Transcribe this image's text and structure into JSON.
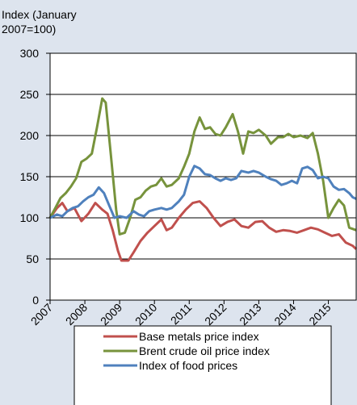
{
  "chart_data": {
    "type": "line",
    "y_label": "Index (January 2007=100)",
    "xlim": [
      2007,
      2015.8
    ],
    "xticks": [
      2007,
      2008,
      2009,
      2010,
      2011,
      2012,
      2013,
      2014,
      2015
    ],
    "ylim": [
      0,
      300
    ],
    "yticks": [
      0,
      50,
      100,
      150,
      200,
      250,
      300
    ],
    "grid": true,
    "legend": "bottom",
    "series": [
      {
        "name": "Base metals price index",
        "color": "#c0504d",
        "x": [
          2007.0,
          2007.2,
          2007.35,
          2007.5,
          2007.7,
          2007.9,
          2008.1,
          2008.3,
          2008.5,
          2008.65,
          2008.8,
          2008.95,
          2009.05,
          2009.25,
          2009.4,
          2009.6,
          2009.8,
          2010.0,
          2010.2,
          2010.35,
          2010.5,
          2010.7,
          2010.9,
          2011.1,
          2011.3,
          2011.5,
          2011.7,
          2011.9,
          2012.1,
          2012.3,
          2012.5,
          2012.7,
          2012.9,
          2013.1,
          2013.3,
          2013.5,
          2013.7,
          2013.9,
          2014.1,
          2014.3,
          2014.5,
          2014.7,
          2014.9,
          2015.1,
          2015.3,
          2015.5,
          2015.7,
          2015.8
        ],
        "values": [
          100,
          112,
          118,
          108,
          112,
          96,
          105,
          118,
          110,
          105,
          85,
          60,
          48,
          48,
          58,
          72,
          82,
          90,
          98,
          85,
          88,
          100,
          110,
          118,
          120,
          112,
          100,
          90,
          95,
          98,
          90,
          88,
          95,
          96,
          88,
          83,
          85,
          84,
          82,
          85,
          88,
          86,
          82,
          78,
          80,
          70,
          66,
          62
        ]
      },
      {
        "name": "Brent crude oil price index",
        "color": "#77933c",
        "x": [
          2007.0,
          2007.15,
          2007.3,
          2007.45,
          2007.6,
          2007.75,
          2007.9,
          2008.05,
          2008.2,
          2008.35,
          2008.5,
          2008.6,
          2008.75,
          2008.9,
          2009.0,
          2009.15,
          2009.3,
          2009.45,
          2009.6,
          2009.75,
          2009.9,
          2010.05,
          2010.2,
          2010.35,
          2010.5,
          2010.7,
          2010.85,
          2011.0,
          2011.15,
          2011.3,
          2011.45,
          2011.6,
          2011.75,
          2011.9,
          2012.05,
          2012.25,
          2012.4,
          2012.55,
          2012.7,
          2012.85,
          2013.0,
          2013.2,
          2013.35,
          2013.55,
          2013.7,
          2013.85,
          2014.0,
          2014.2,
          2014.4,
          2014.55,
          2014.7,
          2014.85,
          2015.0,
          2015.15,
          2015.3,
          2015.45,
          2015.6,
          2015.8
        ],
        "values": [
          100,
          112,
          124,
          130,
          138,
          148,
          168,
          172,
          178,
          210,
          245,
          240,
          175,
          110,
          80,
          82,
          100,
          122,
          125,
          133,
          138,
          140,
          148,
          138,
          140,
          148,
          162,
          178,
          205,
          222,
          208,
          210,
          202,
          200,
          210,
          226,
          205,
          178,
          205,
          203,
          207,
          200,
          190,
          198,
          198,
          202,
          198,
          200,
          197,
          203,
          178,
          145,
          100,
          112,
          122,
          115,
          88,
          85
        ]
      },
      {
        "name": "Index of food prices",
        "color": "#4f81bd",
        "x": [
          2007.0,
          2007.2,
          2007.35,
          2007.5,
          2007.65,
          2007.8,
          2007.95,
          2008.1,
          2008.25,
          2008.4,
          2008.55,
          2008.7,
          2008.85,
          2009.0,
          2009.2,
          2009.4,
          2009.55,
          2009.7,
          2009.85,
          2010.0,
          2010.2,
          2010.35,
          2010.5,
          2010.7,
          2010.85,
          2011.0,
          2011.15,
          2011.3,
          2011.45,
          2011.6,
          2011.75,
          2011.9,
          2012.05,
          2012.2,
          2012.35,
          2012.5,
          2012.7,
          2012.85,
          2013.0,
          2013.2,
          2013.35,
          2013.5,
          2013.65,
          2013.8,
          2013.95,
          2014.1,
          2014.25,
          2014.4,
          2014.55,
          2014.7,
          2014.85,
          2015.0,
          2015.15,
          2015.3,
          2015.45,
          2015.6,
          2015.7,
          2015.8
        ],
        "values": [
          100,
          104,
          102,
          108,
          112,
          114,
          120,
          125,
          128,
          137,
          130,
          115,
          100,
          102,
          100,
          108,
          104,
          102,
          108,
          110,
          112,
          110,
          112,
          120,
          128,
          150,
          163,
          160,
          153,
          152,
          148,
          145,
          148,
          146,
          148,
          157,
          155,
          157,
          155,
          150,
          147,
          145,
          140,
          142,
          145,
          142,
          160,
          162,
          158,
          148,
          150,
          148,
          138,
          134,
          135,
          130,
          125,
          123
        ]
      }
    ]
  }
}
